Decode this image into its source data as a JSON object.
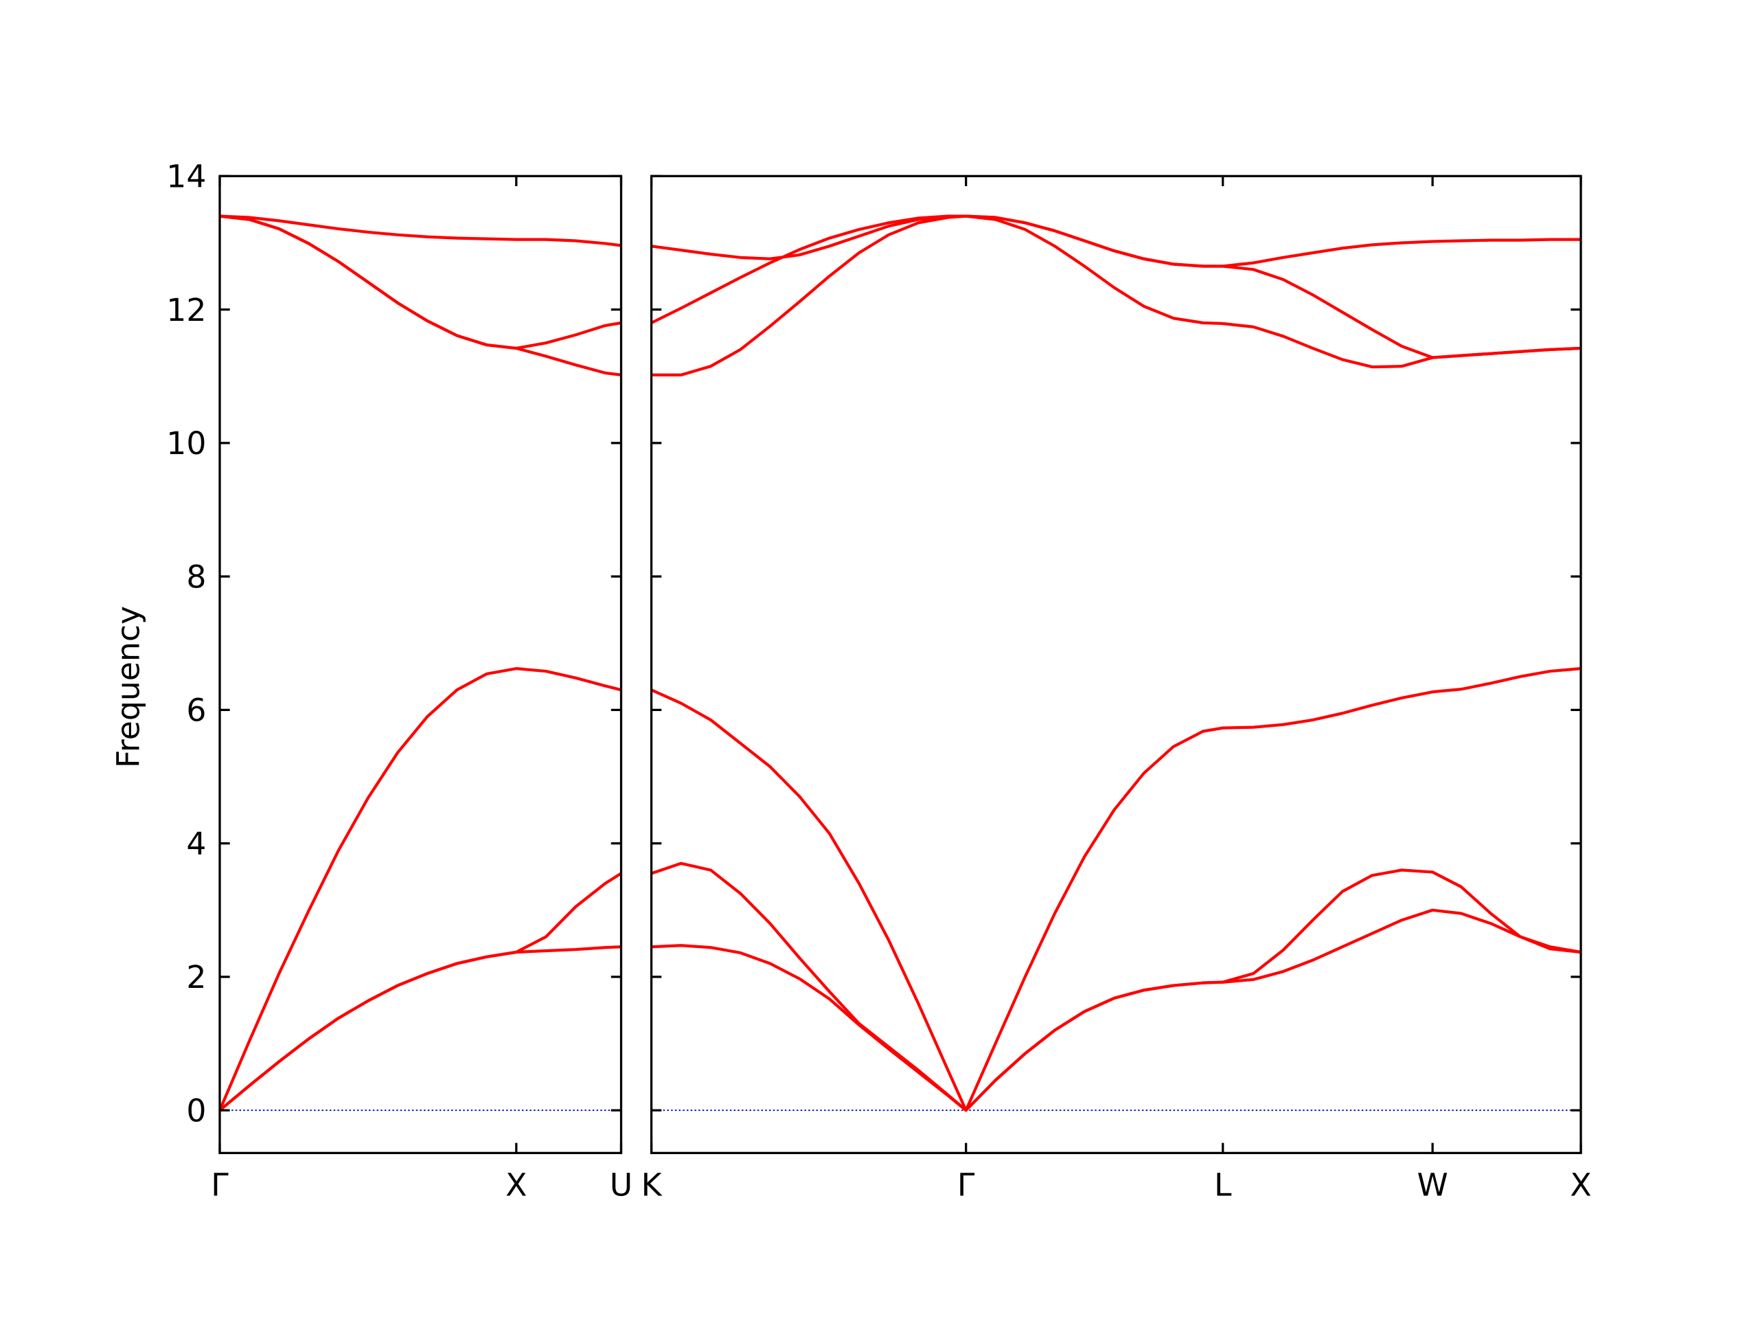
{
  "chart_data": [
    {
      "type": "line",
      "ylabel": "Frequency",
      "ylim": [
        -0.64,
        14
      ],
      "yticks": [
        0,
        2,
        4,
        6,
        8,
        10,
        12,
        14
      ],
      "xlim": [
        0,
        1.3536
      ],
      "xticks": [
        {
          "value": 0,
          "label": "Γ"
        },
        {
          "value": 1,
          "label": "X"
        },
        {
          "value": 1.3536,
          "label": "U"
        }
      ],
      "hline": 0,
      "hline_color": "#0000cc",
      "x": [
        0,
        0.1,
        0.2,
        0.3,
        0.4,
        0.5,
        0.6,
        0.7,
        0.8,
        0.9,
        1.0,
        1.1,
        1.2,
        1.3,
        1.3536
      ],
      "series": [
        {
          "color": "#ff0000",
          "values": [
            0,
            0.37,
            0.73,
            1.07,
            1.38,
            1.64,
            1.87,
            2.05,
            2.2,
            2.3,
            2.37,
            2.39,
            2.41,
            2.44,
            2.45
          ]
        },
        {
          "color": "#ff0000",
          "values": [
            0,
            0.37,
            0.73,
            1.07,
            1.38,
            1.64,
            1.87,
            2.05,
            2.2,
            2.3,
            2.37,
            2.6,
            3.05,
            3.4,
            3.55
          ]
        },
        {
          "color": "#ff0000",
          "values": [
            0,
            1.04,
            2.05,
            2.99,
            3.89,
            4.68,
            5.36,
            5.9,
            6.3,
            6.54,
            6.62,
            6.58,
            6.48,
            6.36,
            6.3
          ]
        },
        {
          "color": "#ff0000",
          "values": [
            13.4,
            13.38,
            13.33,
            13.27,
            13.21,
            13.16,
            13.12,
            13.09,
            13.07,
            13.06,
            13.05,
            13.05,
            13.03,
            12.99,
            12.96
          ]
        },
        {
          "color": "#ff0000",
          "values": [
            13.4,
            13.35,
            13.21,
            12.99,
            12.72,
            12.41,
            12.1,
            11.83,
            11.61,
            11.47,
            11.42,
            11.5,
            11.62,
            11.76,
            11.8
          ]
        },
        {
          "color": "#ff0000",
          "values": [
            13.4,
            13.35,
            13.21,
            12.99,
            12.72,
            12.41,
            12.1,
            11.83,
            11.61,
            11.47,
            11.42,
            11.3,
            11.17,
            11.05,
            11.02
          ]
        }
      ]
    },
    {
      "type": "line",
      "ylim": [
        -0.64,
        14
      ],
      "yticks": [
        0,
        2,
        4,
        6,
        8,
        10,
        12,
        14
      ],
      "xlim": [
        0,
        3.1338
      ],
      "xticks": [
        {
          "value": 0,
          "label": "K"
        },
        {
          "value": 1.0607,
          "label": "Γ"
        },
        {
          "value": 1.9267,
          "label": "L"
        },
        {
          "value": 2.6338,
          "label": "W"
        },
        {
          "value": 3.1338,
          "label": "X"
        }
      ],
      "hline": 0,
      "hline_color": "#0000cc",
      "x": [
        0,
        0.1,
        0.2,
        0.3,
        0.4,
        0.5,
        0.6,
        0.7,
        0.8,
        0.9,
        1.0,
        1.0607,
        1.16,
        1.26,
        1.36,
        1.46,
        1.56,
        1.66,
        1.76,
        1.86,
        1.9267,
        2.03,
        2.13,
        2.23,
        2.33,
        2.43,
        2.53,
        2.6338,
        2.73,
        2.83,
        2.93,
        3.03,
        3.1338
      ],
      "series": [
        {
          "color": "#ff0000",
          "values": [
            2.45,
            2.47,
            2.44,
            2.36,
            2.2,
            1.97,
            1.67,
            1.28,
            0.92,
            0.57,
            0.22,
            0,
            0.45,
            0.85,
            1.2,
            1.48,
            1.68,
            1.8,
            1.87,
            1.91,
            1.92,
            1.96,
            2.08,
            2.25,
            2.45,
            2.65,
            2.85,
            3.0,
            2.95,
            2.8,
            2.6,
            2.45,
            2.37
          ]
        },
        {
          "color": "#ff0000",
          "values": [
            3.55,
            3.7,
            3.6,
            3.25,
            2.8,
            2.28,
            1.78,
            1.3,
            0.95,
            0.6,
            0.23,
            0,
            0.45,
            0.85,
            1.2,
            1.48,
            1.68,
            1.8,
            1.87,
            1.91,
            1.92,
            2.05,
            2.4,
            2.85,
            3.28,
            3.52,
            3.6,
            3.57,
            3.35,
            2.95,
            2.6,
            2.42,
            2.37
          ]
        },
        {
          "color": "#ff0000",
          "values": [
            6.3,
            6.1,
            5.85,
            5.5,
            5.15,
            4.7,
            4.15,
            3.4,
            2.55,
            1.6,
            0.6,
            0,
            1.0,
            2.0,
            2.95,
            3.8,
            4.5,
            5.05,
            5.45,
            5.68,
            5.73,
            5.74,
            5.78,
            5.85,
            5.95,
            6.07,
            6.18,
            6.27,
            6.31,
            6.4,
            6.5,
            6.58,
            6.62
          ]
        },
        {
          "color": "#ff0000",
          "values": [
            11.02,
            11.02,
            11.15,
            11.4,
            11.75,
            12.12,
            12.5,
            12.85,
            13.12,
            13.3,
            13.38,
            13.4,
            13.35,
            13.2,
            12.95,
            12.65,
            12.33,
            12.05,
            11.87,
            11.8,
            11.79,
            11.74,
            11.6,
            11.42,
            11.25,
            11.14,
            11.15,
            11.28,
            11.31,
            11.34,
            11.37,
            11.4,
            11.42
          ]
        },
        {
          "color": "#ff0000",
          "values": [
            11.8,
            12.02,
            12.25,
            12.48,
            12.7,
            12.9,
            13.07,
            13.2,
            13.3,
            13.37,
            13.4,
            13.4,
            13.38,
            13.3,
            13.18,
            13.03,
            12.88,
            12.76,
            12.68,
            12.65,
            12.65,
            12.6,
            12.45,
            12.22,
            11.96,
            11.7,
            11.45,
            11.28,
            11.31,
            11.34,
            11.37,
            11.4,
            11.42
          ]
        },
        {
          "color": "#ff0000",
          "values": [
            12.95,
            12.89,
            12.83,
            12.78,
            12.76,
            12.82,
            12.95,
            13.1,
            13.25,
            13.35,
            13.39,
            13.4,
            13.38,
            13.3,
            13.18,
            13.03,
            12.88,
            12.76,
            12.68,
            12.65,
            12.65,
            12.7,
            12.78,
            12.85,
            12.92,
            12.97,
            13.0,
            13.02,
            13.03,
            13.04,
            13.04,
            13.05,
            13.05
          ]
        }
      ]
    }
  ]
}
